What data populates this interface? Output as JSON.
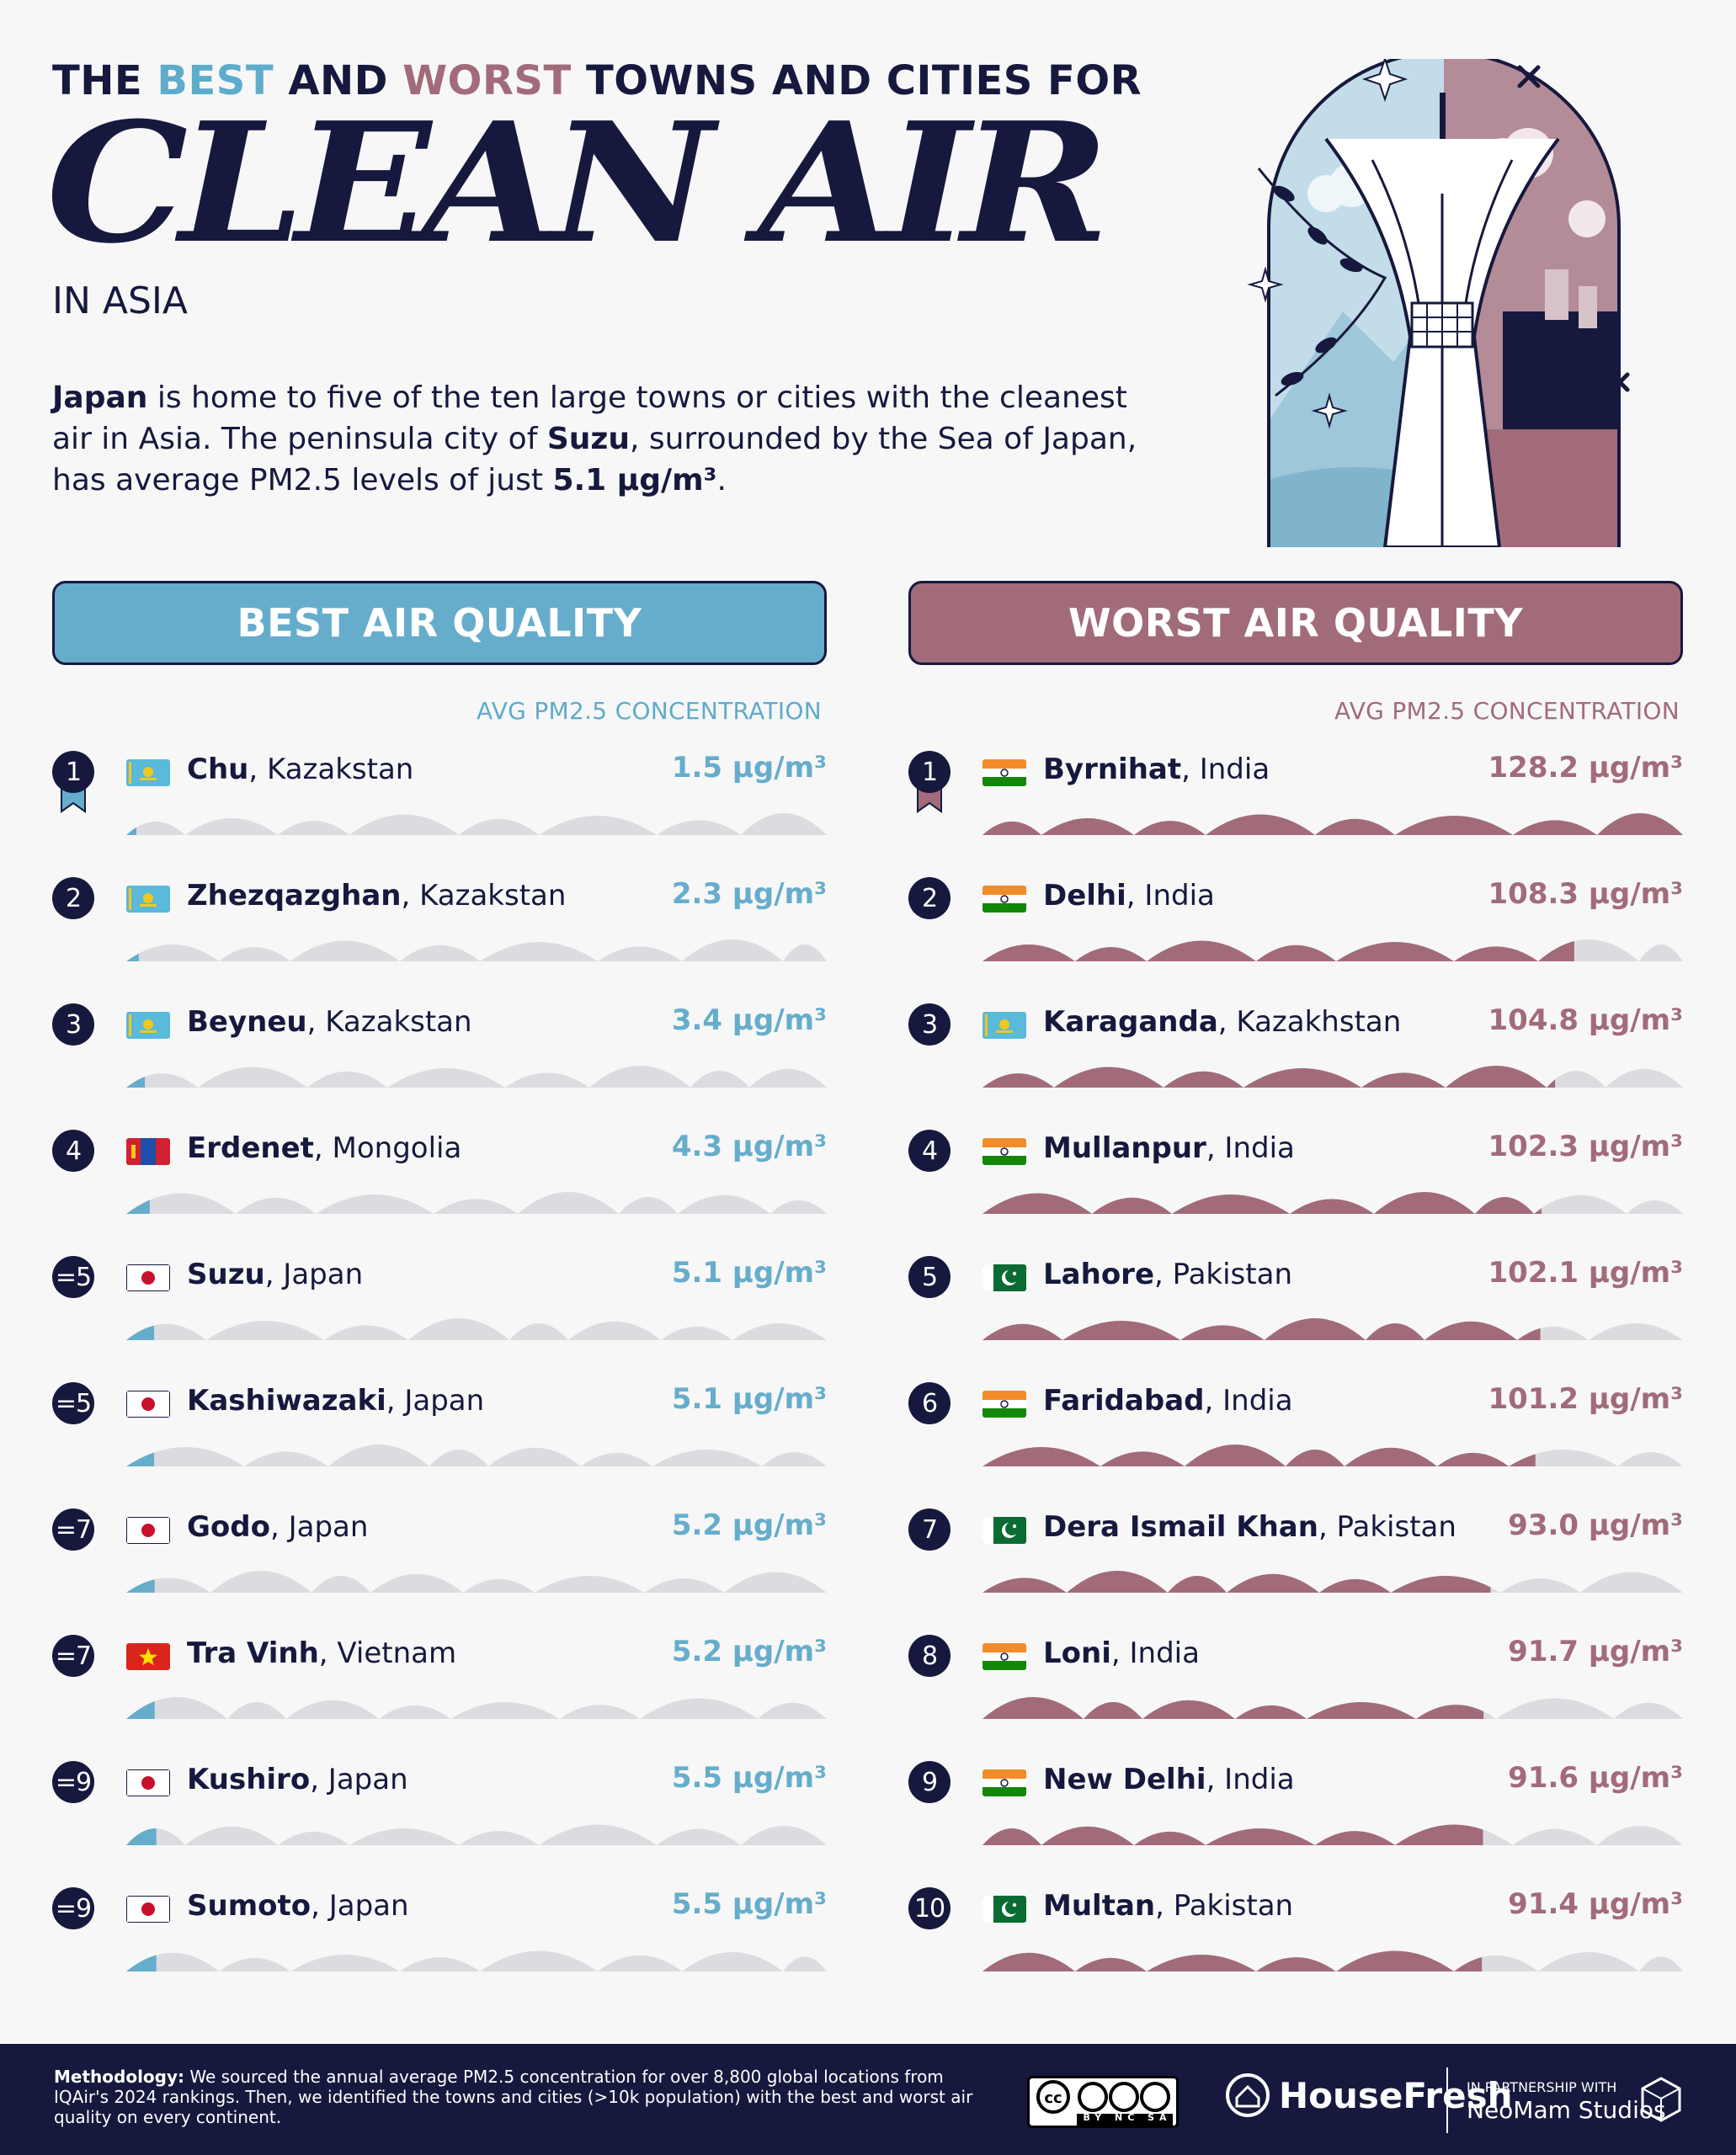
{
  "header": {
    "headline_pre": "THE ",
    "headline_best": "BEST",
    "headline_mid": " AND ",
    "headline_worst": "WORST",
    "headline_post": " TOWNS AND CITIES FOR",
    "title": "CLEAN AIR",
    "subtitle": "IN ASIA"
  },
  "intro": {
    "p1_bold": "Japan",
    "p1": " is home to five of the ten large towns or cities with the cleanest air in Asia. The peninsula city of ",
    "p2_bold": "Suzu",
    "p2": ", surrounded by the Sea of Japan, has average PM2.5 levels of just ",
    "p3_bold": "5.1 µg/m³",
    "p3": "."
  },
  "best": {
    "header": "BEST AIR QUALITY",
    "column_label": "AVG PM2.5 CONCENTRATION",
    "color": "#66adcc"
  },
  "worst": {
    "header": "WORST AIR QUALITY",
    "column_label": "AVG PM2.5 CONCENTRATION",
    "color": "#a26b7a"
  },
  "chart_data": [
    {
      "type": "bar",
      "title": "BEST AIR QUALITY",
      "ylabel": "AVG PM2.5 CONCENTRATION",
      "unit": "µg/m³",
      "ylim": [
        0,
        128.2
      ],
      "categories": [
        "Chu",
        "Zhezqazghan",
        "Beyneu",
        "Erdenet",
        "Suzu",
        "Kashiwazaki",
        "Godo",
        "Tra Vinh",
        "Kushiro",
        "Sumoto"
      ],
      "countries": [
        "Kazakstan",
        "Kazakstan",
        "Kazakstan",
        "Mongolia",
        "Japan",
        "Japan",
        "Japan",
        "Vietnam",
        "Japan",
        "Japan"
      ],
      "ranks": [
        "1",
        "2",
        "3",
        "4",
        "=5",
        "=5",
        "=7",
        "=7",
        "=9",
        "=9"
      ],
      "flags": [
        "kazakhstan",
        "kazakhstan",
        "kazakhstan",
        "mongolia",
        "japan",
        "japan",
        "japan",
        "vietnam",
        "japan",
        "japan"
      ],
      "values": [
        1.5,
        2.3,
        3.4,
        4.3,
        5.1,
        5.1,
        5.2,
        5.2,
        5.5,
        5.5
      ],
      "labels": [
        "1.5 µg/m³",
        "2.3 µg/m³",
        "3.4 µg/m³",
        "4.3 µg/m³",
        "5.1 µg/m³",
        "5.1 µg/m³",
        "5.2 µg/m³",
        "5.2 µg/m³",
        "5.5 µg/m³",
        "5.5 µg/m³"
      ]
    },
    {
      "type": "bar",
      "title": "WORST AIR QUALITY",
      "ylabel": "AVG PM2.5 CONCENTRATION",
      "unit": "µg/m³",
      "ylim": [
        0,
        128.2
      ],
      "categories": [
        "Byrnihat",
        "Delhi",
        "Karaganda",
        "Mullanpur",
        "Lahore",
        "Faridabad",
        "Dera Ismail Khan",
        "Loni",
        "New Delhi",
        "Multan"
      ],
      "countries": [
        "India",
        "India",
        "Kazakhstan",
        "India",
        "Pakistan",
        "India",
        "Pakistan",
        "India",
        "India",
        "Pakistan"
      ],
      "ranks": [
        "1",
        "2",
        "3",
        "4",
        "5",
        "6",
        "7",
        "8",
        "9",
        "10"
      ],
      "flags": [
        "india",
        "india",
        "kazakhstan",
        "india",
        "pakistan",
        "india",
        "pakistan",
        "india",
        "india",
        "pakistan"
      ],
      "values": [
        128.2,
        108.3,
        104.8,
        102.3,
        102.1,
        101.2,
        93.0,
        91.7,
        91.6,
        91.4
      ],
      "labels": [
        "128.2 µg/m³",
        "108.3 µg/m³",
        "104.8 µg/m³",
        "102.3 µg/m³",
        "102.1 µg/m³",
        "101.2 µg/m³",
        "93.0 µg/m³",
        "91.7 µg/m³",
        "91.6 µg/m³",
        "91.4 µg/m³"
      ]
    }
  ],
  "footer": {
    "methodology_bold": "Methodology:",
    "methodology": " We sourced the annual average PM2.5 concentration for over 8,800 global locations from IQAir's 2024 rankings. Then, we identified the towns and cities (>10k population) with the best and worst air quality on every continent.",
    "license": "BY NC SA",
    "brand": "HouseFresh",
    "partner_small": "IN PARTNERSHIP WITH",
    "partner": "NeoMam Studios"
  },
  "colors": {
    "navy": "#16193d",
    "best": "#66adcc",
    "worst": "#a26b7a",
    "track": "#dcdce0"
  }
}
